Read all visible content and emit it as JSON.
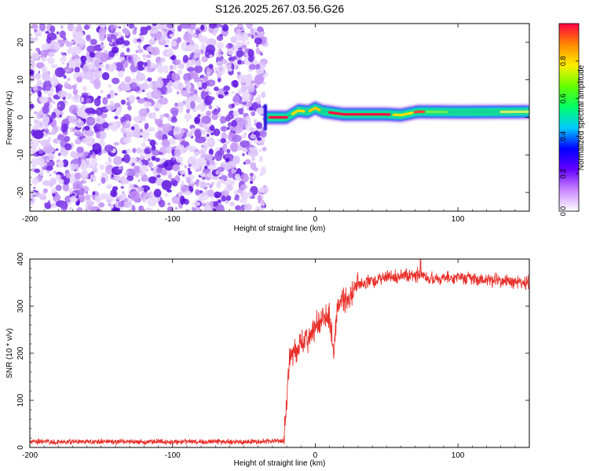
{
  "title": "S126.2025.267.03.56.G26",
  "chart_data": [
    {
      "type": "heatmap",
      "xlabel": "Height of straight line (km)",
      "ylabel": "Frequency (Hz)",
      "xlim": [
        -200,
        150
      ],
      "ylim": [
        -25,
        25
      ],
      "x_ticks": [
        -200,
        -100,
        0,
        100
      ],
      "x_tick_labels": [
        "-200",
        "-100",
        "0",
        "100"
      ],
      "y_ticks": [
        -20,
        -10,
        0,
        10,
        20
      ],
      "y_tick_labels": [
        "-20",
        "-10",
        "0",
        "10",
        "20"
      ],
      "noise_region_x": [
        -200,
        -35
      ],
      "signal_band": {
        "x_start": -35,
        "x_end": 150,
        "center_freq_hz": 1.0,
        "half_width_hz": 1.2,
        "ridge_points": [
          {
            "x": -35,
            "y": 0.0
          },
          {
            "x": -20,
            "y": 0.0
          },
          {
            "x": -12,
            "y": 1.8
          },
          {
            "x": -5,
            "y": 1.5
          },
          {
            "x": 0,
            "y": 2.5
          },
          {
            "x": 5,
            "y": 1.6
          },
          {
            "x": 20,
            "y": 0.8
          },
          {
            "x": 50,
            "y": 0.8
          },
          {
            "x": 60,
            "y": 0.6
          },
          {
            "x": 72,
            "y": 1.5
          },
          {
            "x": 100,
            "y": 1.4
          },
          {
            "x": 150,
            "y": 1.5
          }
        ]
      },
      "colorbar": {
        "label": "Normalized spectral amplitude",
        "range": [
          0.0,
          1.0
        ],
        "ticks": [
          0.0,
          0.2,
          0.4,
          0.6,
          0.8
        ],
        "tick_labels": [
          "0.0",
          "0.2",
          "0.4",
          "0.6",
          "0.8"
        ],
        "colors": [
          "#ffffff",
          "#cc88ff",
          "#6600ff",
          "#0000ff",
          "#00ccff",
          "#00ff66",
          "#66ff00",
          "#ffee00",
          "#ff8800",
          "#ff0044"
        ]
      }
    },
    {
      "type": "line",
      "xlabel": "Height of straight line (km)",
      "ylabel": "SNR (10 * v/v)",
      "xlim": [
        -200,
        150
      ],
      "ylim": [
        0,
        400
      ],
      "x_ticks": [
        -200,
        -100,
        0,
        100
      ],
      "x_tick_labels": [
        "-200",
        "-100",
        "0",
        "100"
      ],
      "y_ticks": [
        0,
        100,
        200,
        300,
        400
      ],
      "y_tick_labels": [
        "0",
        "100",
        "200",
        "300",
        "400"
      ],
      "line_color": "#e8302a",
      "series": [
        {
          "name": "SNR",
          "x": [
            -200,
            -150,
            -100,
            -50,
            -22,
            -20,
            -18,
            -15,
            -10,
            -5,
            0,
            5,
            10,
            13,
            15,
            20,
            25,
            30,
            40,
            50,
            60,
            72,
            80,
            100,
            120,
            150
          ],
          "values": [
            12,
            12,
            12,
            12,
            14,
            100,
            185,
            195,
            215,
            235,
            255,
            270,
            280,
            190,
            290,
            305,
            320,
            345,
            355,
            360,
            362,
            365,
            360,
            360,
            355,
            350
          ]
        }
      ]
    }
  ]
}
